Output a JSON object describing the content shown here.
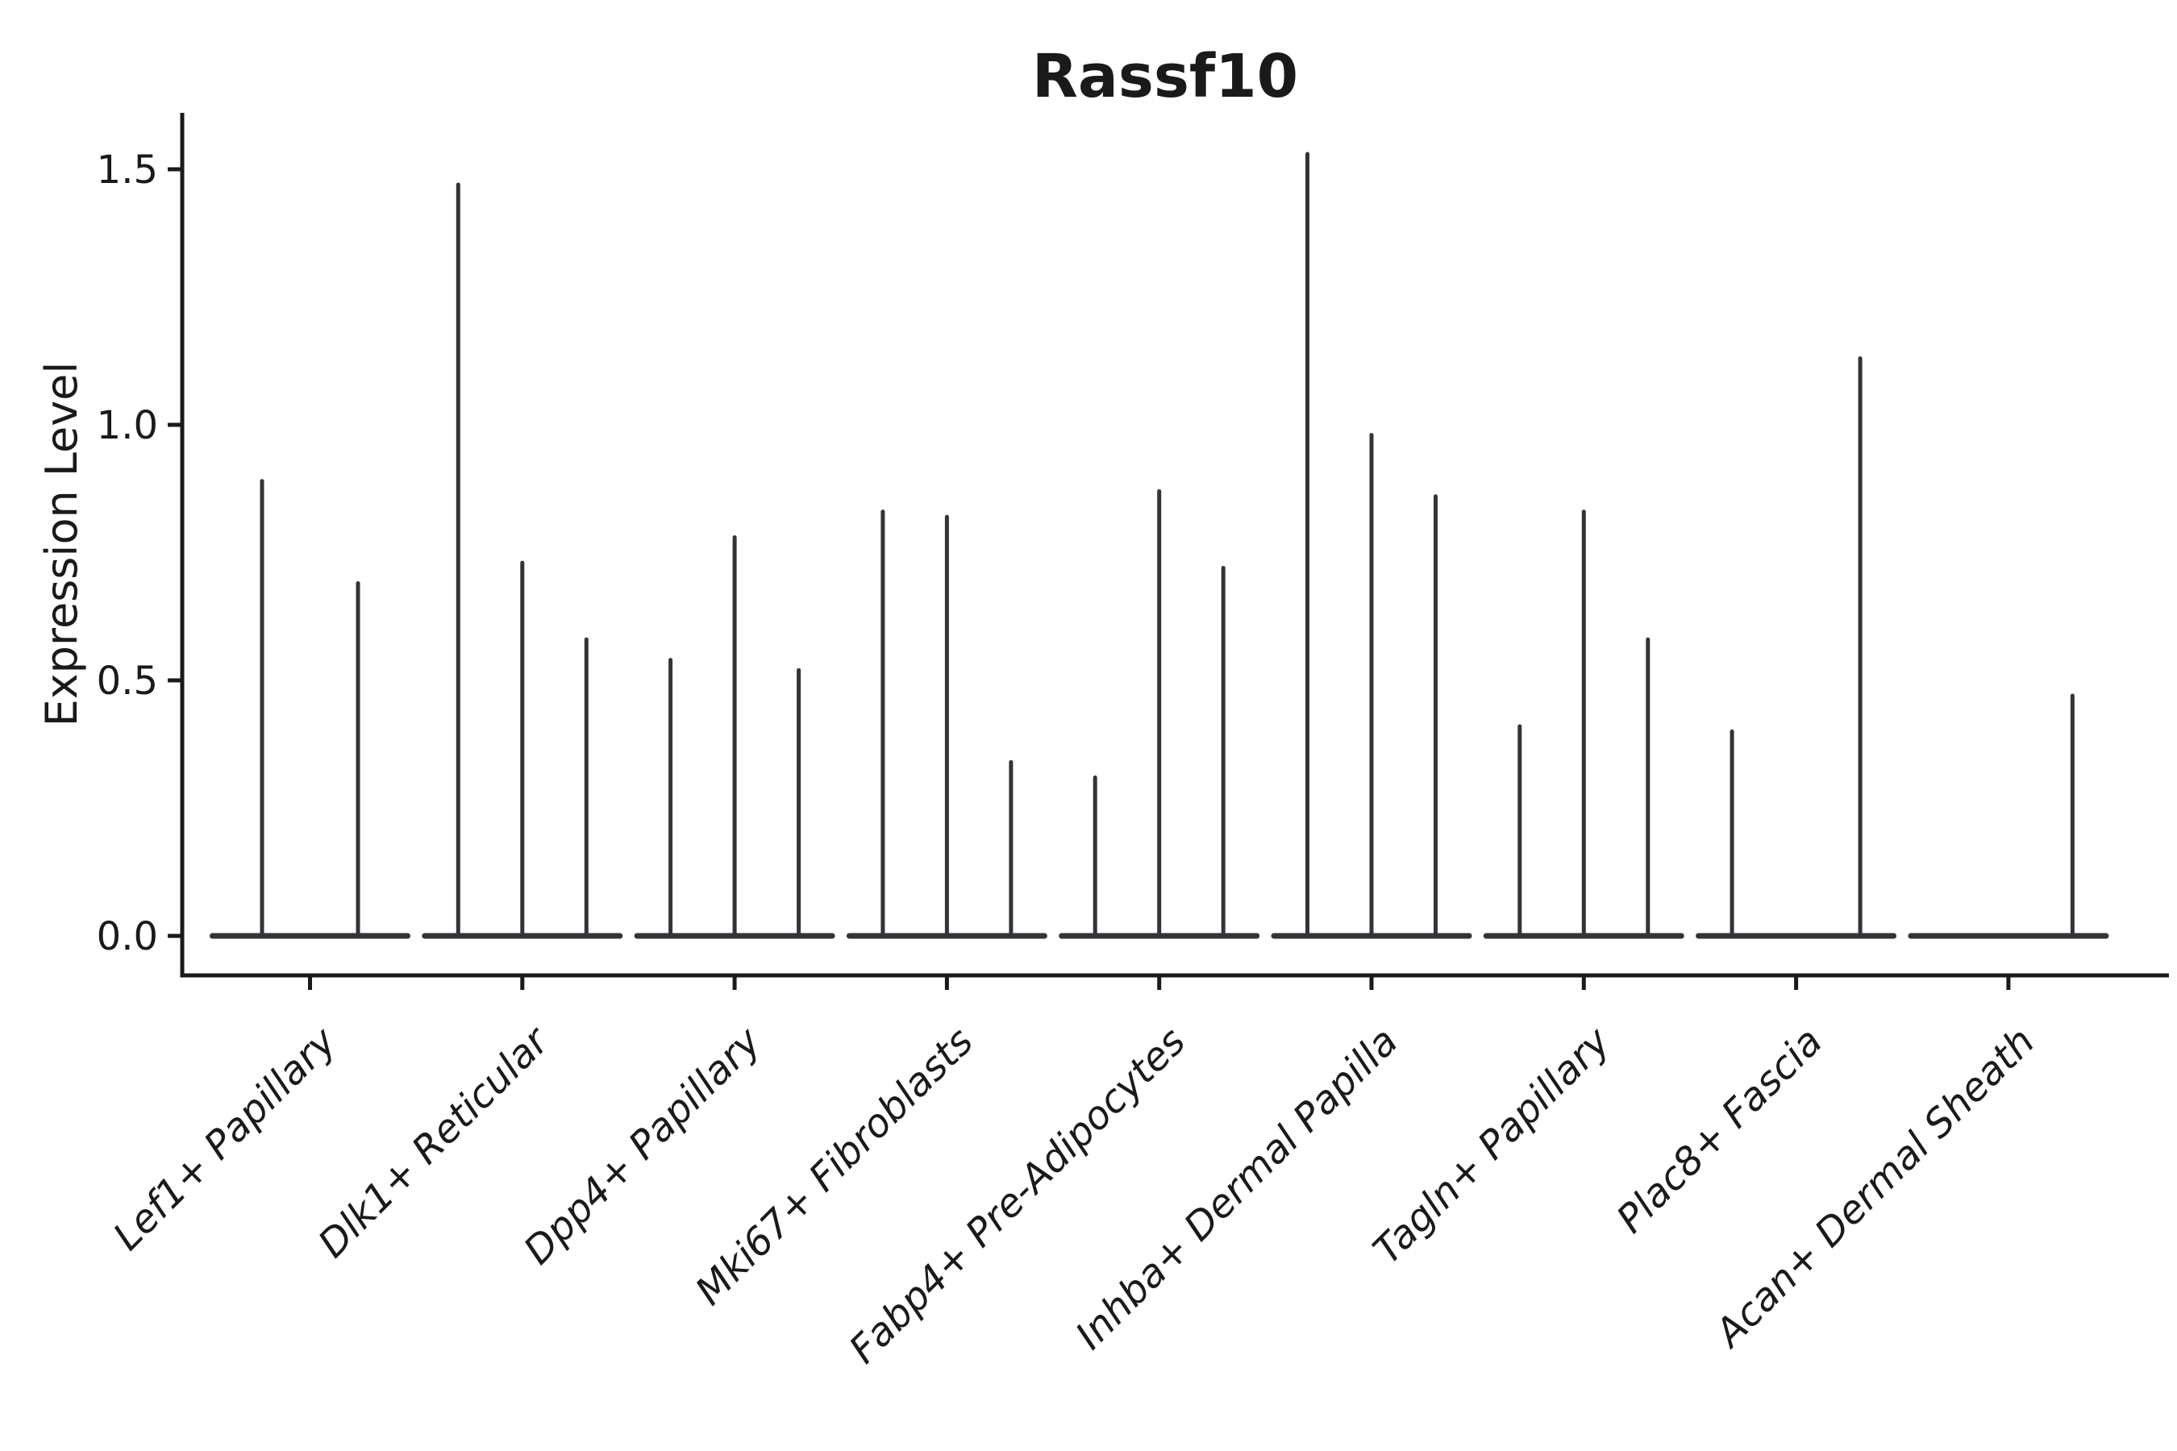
{
  "figure": {
    "background": "#ffffff",
    "text_color": "#1a1a1a"
  },
  "chart_data": {
    "type": "violin",
    "title": "Rassf10",
    "ylabel": "Expression Level",
    "xlabel": "",
    "y_tick_values": [
      0.0,
      0.5,
      1.0,
      1.5
    ],
    "y_tick_labels": [
      "0.0",
      "0.5",
      "1.0",
      "1.5"
    ],
    "ylim": [
      -0.08,
      1.62
    ],
    "grid": false,
    "legend": "none",
    "axis_color": "#1a1a1a",
    "violin_color": "#333338",
    "x_label_rotation_deg": 45,
    "categories": [
      "Lef1+ Papillary",
      "Dlk1+ Reticular",
      "Dpp4+ Papillary",
      "Mki67+ Fibroblasts",
      "Fabp4+ Pre-Adipocytes",
      "Inhba+ Dermal Papilla",
      "Tagln+ Papillary",
      "Plac8+ Fascia",
      "Acan+ Dermal Sheath"
    ],
    "description": "Single-cell expression violin plot for gene Rassf10. Each category shows 2-3 extremely thin dodged violins: a flat bar at expression 0 with narrow spikes reaching the listed maximum expression. A zero in violin_maxima means that violin is completely flat at 0.",
    "groups": [
      {
        "category": "Lef1+ Papillary",
        "violin_maxima": [
          0.89,
          0.69
        ]
      },
      {
        "category": "Dlk1+ Reticular",
        "violin_maxima": [
          1.47,
          0.73,
          0.58
        ]
      },
      {
        "category": "Dpp4+ Papillary",
        "violin_maxima": [
          0.54,
          0.78,
          0.52
        ]
      },
      {
        "category": "Mki67+ Fibroblasts",
        "violin_maxima": [
          0.83,
          0.82,
          0.34
        ]
      },
      {
        "category": "Fabp4+ Pre-Adipocytes",
        "violin_maxima": [
          0.31,
          0.87,
          0.72
        ]
      },
      {
        "category": "Inhba+ Dermal Papilla",
        "violin_maxima": [
          1.53,
          0.98,
          0.86
        ]
      },
      {
        "category": "Tagln+ Papillary",
        "violin_maxima": [
          0.41,
          0.83,
          0.58
        ]
      },
      {
        "category": "Plac8+ Fascia",
        "violin_maxima": [
          0.4,
          0,
          1.13
        ]
      },
      {
        "category": "Acan+ Dermal Sheath",
        "violin_maxima": [
          0,
          0,
          0.47
        ]
      }
    ]
  }
}
